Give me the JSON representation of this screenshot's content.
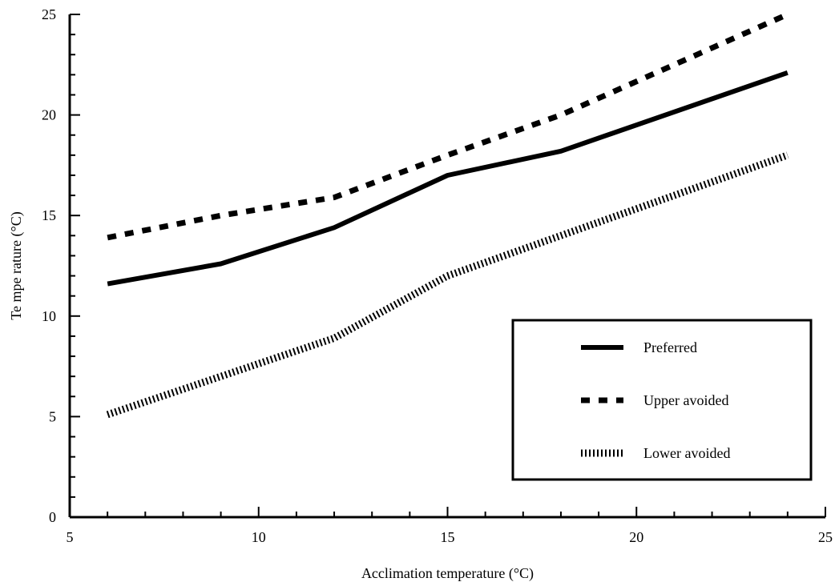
{
  "chart_data": {
    "type": "line",
    "title": "",
    "xlabel": "Acclimation temperature (°C)",
    "ylabel": "Te mpe rature (°C)",
    "xlim": [
      5,
      25
    ],
    "ylim": [
      0,
      25
    ],
    "x_ticks": [
      "5",
      "10",
      "15",
      "20",
      "25"
    ],
    "y_ticks": [
      "0",
      "5",
      "10",
      "15",
      "20",
      "25"
    ],
    "grid": false,
    "legend_position": "bottom-right",
    "series": [
      {
        "name": "Preferred",
        "style": "solid",
        "color": "#000000",
        "x": [
          6,
          9,
          12,
          15,
          18,
          24
        ],
        "y": [
          11.6,
          12.6,
          14.4,
          17.0,
          18.2,
          22.1
        ]
      },
      {
        "name": "Upper avoided",
        "style": "dashed",
        "color": "#000000",
        "x": [
          6,
          9,
          12,
          15,
          18,
          24
        ],
        "y": [
          13.9,
          15.0,
          15.9,
          18.0,
          20.0,
          25.0
        ]
      },
      {
        "name": "Lower avoided",
        "style": "hatched",
        "color": "#000000",
        "x": [
          6,
          9,
          12,
          15,
          18,
          21,
          24
        ],
        "y": [
          5.1,
          7.0,
          8.9,
          12.0,
          14.0,
          16.0,
          18.0
        ]
      }
    ]
  }
}
